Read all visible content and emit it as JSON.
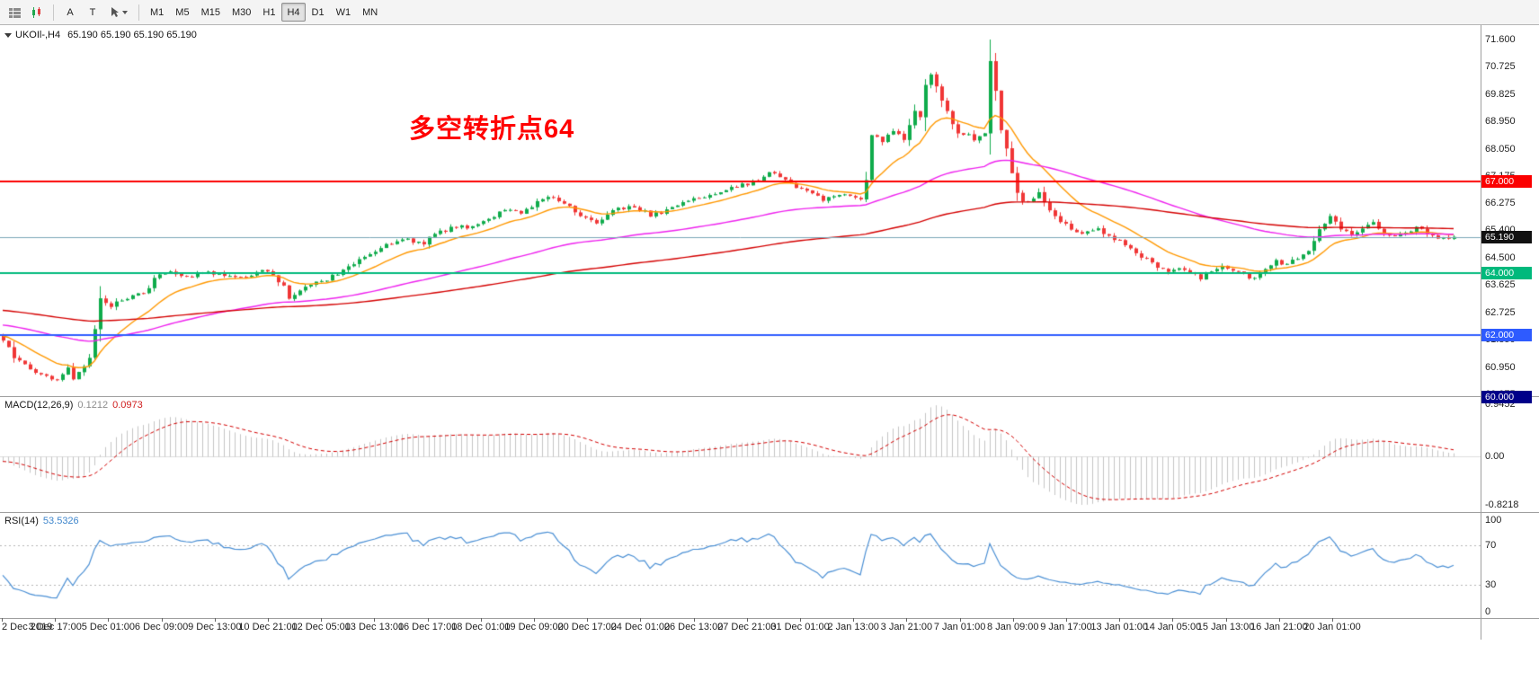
{
  "toolbar": {
    "buttons": [
      {
        "id": "arrow-tool",
        "label": "A"
      },
      {
        "id": "text-tool",
        "label": "T"
      }
    ],
    "timeframes": [
      "M1",
      "M5",
      "M15",
      "M30",
      "H1",
      "H4",
      "D1",
      "W1",
      "MN"
    ],
    "active_timeframe": "H4"
  },
  "main_chart": {
    "symbol": "UKOIl-,H4",
    "ohlc_text": "65.190 65.190 65.190 65.190",
    "annotation": {
      "text": "多空转折点64",
      "color": "#ff0000"
    },
    "current_price": {
      "value": "65.190"
    },
    "price_axis": [
      "71.600",
      "70.725",
      "69.825",
      "68.950",
      "68.050",
      "67.175",
      "66.275",
      "65.400",
      "64.500",
      "63.625",
      "62.725",
      "61.850",
      "60.950",
      "60.075"
    ],
    "horizontal_lines": [
      {
        "price": 67.0,
        "label": "67.000",
        "color": "#fb0000",
        "width": 2
      },
      {
        "price": 64.0,
        "label": "64.000",
        "color": "#00b97c",
        "width": 2
      },
      {
        "price": 62.0,
        "label": "62.000",
        "color": "#2e5bff",
        "width": 2
      },
      {
        "price": 60.0,
        "label": "60.000",
        "color": "#000089",
        "width": 3
      }
    ]
  },
  "macd_panel": {
    "title": "MACD(12,26,9)",
    "value_main": "0.1212",
    "value_signal": "0.0973",
    "axis": [
      "0.9452",
      "0.00",
      "-0.8218"
    ]
  },
  "rsi_panel": {
    "title": "RSI(14)",
    "value": "53.5326",
    "axis": [
      "100",
      "70",
      "30",
      "0"
    ]
  },
  "time_axis": [
    "2 Dec 2019",
    "3 Dec 17:00",
    "5 Dec 01:00",
    "6 Dec 09:00",
    "9 Dec 13:00",
    "10 Dec 21:00",
    "12 Dec 05:00",
    "13 Dec 13:00",
    "16 Dec 17:00",
    "18 Dec 01:00",
    "19 Dec 09:00",
    "20 Dec 17:00",
    "24 Dec 01:00",
    "26 Dec 13:00",
    "27 Dec 21:00",
    "31 Dec 01:00",
    "2 Jan 13:00",
    "3 Jan 21:00",
    "7 Jan 01:00",
    "8 Jan 09:00",
    "9 Jan 17:00",
    "13 Jan 01:00",
    "14 Jan 05:00",
    "15 Jan 13:00",
    "16 Jan 21:00",
    "20 Jan 01:00"
  ],
  "colors": {
    "bull": "#0fab4b",
    "bear": "#f03636",
    "price_line": "#7ba7b8",
    "current_badge": "#111111"
  },
  "chart_data": {
    "type": "candlestick",
    "symbol": "UKOIl-",
    "timeframe": "H4",
    "ohlc_display": {
      "open": "65.190",
      "high": "65.190",
      "low": "65.190",
      "close": "65.190"
    },
    "price_range_view": [
      59.95,
      72.07
    ],
    "n_candles": 270,
    "close_anchors": [
      [
        0,
        61.85
      ],
      [
        2,
        61.3
      ],
      [
        4,
        61.05
      ],
      [
        6,
        60.8
      ],
      [
        8,
        60.65
      ],
      [
        10,
        60.55
      ],
      [
        12,
        60.9
      ],
      [
        13,
        60.6
      ],
      [
        15,
        61.05
      ],
      [
        16,
        61.3
      ],
      [
        17,
        62.2
      ],
      [
        18,
        63.25
      ],
      [
        20,
        62.95
      ],
      [
        22,
        63.15
      ],
      [
        24,
        63.3
      ],
      [
        26,
        63.35
      ],
      [
        28,
        63.8
      ],
      [
        30,
        64.1
      ],
      [
        32,
        63.95
      ],
      [
        34,
        63.85
      ],
      [
        36,
        63.95
      ],
      [
        38,
        64.05
      ],
      [
        40,
        64.0
      ],
      [
        42,
        63.9
      ],
      [
        44,
        63.85
      ],
      [
        46,
        63.95
      ],
      [
        48,
        64.05
      ],
      [
        50,
        63.95
      ],
      [
        52,
        63.6
      ],
      [
        53,
        63.25
      ],
      [
        55,
        63.45
      ],
      [
        57,
        63.6
      ],
      [
        60,
        63.8
      ],
      [
        62,
        64.0
      ],
      [
        64,
        64.2
      ],
      [
        66,
        64.45
      ],
      [
        68,
        64.6
      ],
      [
        70,
        64.8
      ],
      [
        72,
        65.0
      ],
      [
        74,
        65.15
      ],
      [
        76,
        65.05
      ],
      [
        78,
        65.0
      ],
      [
        80,
        65.25
      ],
      [
        82,
        65.4
      ],
      [
        84,
        65.55
      ],
      [
        86,
        65.45
      ],
      [
        88,
        65.55
      ],
      [
        90,
        65.8
      ],
      [
        92,
        65.95
      ],
      [
        94,
        66.1
      ],
      [
        96,
        66.0
      ],
      [
        98,
        66.2
      ],
      [
        100,
        66.45
      ],
      [
        102,
        66.5
      ],
      [
        104,
        66.3
      ],
      [
        106,
        66.0
      ],
      [
        108,
        65.75
      ],
      [
        110,
        65.6
      ],
      [
        112,
        65.9
      ],
      [
        114,
        66.1
      ],
      [
        116,
        66.2
      ],
      [
        118,
        66.1
      ],
      [
        120,
        65.9
      ],
      [
        122,
        66.0
      ],
      [
        124,
        66.15
      ],
      [
        126,
        66.3
      ],
      [
        128,
        66.4
      ],
      [
        130,
        66.5
      ],
      [
        132,
        66.6
      ],
      [
        134,
        66.7
      ],
      [
        136,
        66.85
      ],
      [
        138,
        66.9
      ],
      [
        140,
        67.05
      ],
      [
        142,
        67.35
      ],
      [
        144,
        67.1
      ],
      [
        146,
        66.9
      ],
      [
        148,
        66.75
      ],
      [
        150,
        66.6
      ],
      [
        152,
        66.4
      ],
      [
        154,
        66.45
      ],
      [
        156,
        66.6
      ],
      [
        158,
        66.5
      ],
      [
        159,
        66.4
      ],
      [
        160,
        67.1
      ],
      [
        161,
        68.55
      ],
      [
        163,
        68.3
      ],
      [
        165,
        68.65
      ],
      [
        167,
        68.3
      ],
      [
        169,
        69.25
      ],
      [
        170,
        69.05
      ],
      [
        171,
        70.15
      ],
      [
        172,
        70.5
      ],
      [
        173,
        70.05
      ],
      [
        174,
        69.6
      ],
      [
        175,
        69.3
      ],
      [
        176,
        68.9
      ],
      [
        177,
        68.6
      ],
      [
        178,
        68.45
      ],
      [
        179,
        68.55
      ],
      [
        180,
        68.35
      ],
      [
        181,
        68.5
      ],
      [
        182,
        68.6
      ],
      [
        183,
        70.85
      ],
      [
        184,
        69.9
      ],
      [
        185,
        68.7
      ],
      [
        186,
        68.0
      ],
      [
        187,
        67.3
      ],
      [
        188,
        66.6
      ],
      [
        189,
        66.4
      ],
      [
        190,
        66.35
      ],
      [
        191,
        66.5
      ],
      [
        192,
        66.6
      ],
      [
        193,
        66.3
      ],
      [
        194,
        66.0
      ],
      [
        195,
        65.85
      ],
      [
        196,
        65.7
      ],
      [
        197,
        65.55
      ],
      [
        198,
        65.45
      ],
      [
        200,
        65.3
      ],
      [
        202,
        65.45
      ],
      [
        204,
        65.35
      ],
      [
        206,
        65.15
      ],
      [
        208,
        64.9
      ],
      [
        210,
        64.7
      ],
      [
        212,
        64.45
      ],
      [
        214,
        64.2
      ],
      [
        216,
        64.0
      ],
      [
        218,
        64.2
      ],
      [
        220,
        64.0
      ],
      [
        222,
        63.85
      ],
      [
        224,
        64.1
      ],
      [
        226,
        64.3
      ],
      [
        228,
        64.1
      ],
      [
        230,
        63.95
      ],
      [
        232,
        63.8
      ],
      [
        234,
        64.15
      ],
      [
        236,
        64.4
      ],
      [
        238,
        64.3
      ],
      [
        240,
        64.5
      ],
      [
        242,
        64.8
      ],
      [
        244,
        65.45
      ],
      [
        246,
        65.9
      ],
      [
        248,
        65.5
      ],
      [
        250,
        65.3
      ],
      [
        252,
        65.45
      ],
      [
        254,
        65.6
      ],
      [
        256,
        65.3
      ],
      [
        258,
        65.15
      ],
      [
        260,
        65.35
      ],
      [
        262,
        65.5
      ],
      [
        264,
        65.3
      ],
      [
        266,
        65.2
      ],
      [
        269,
        65.19
      ]
    ],
    "spike_high": {
      "index": 183,
      "price": 71.6
    },
    "moving_averages": [
      {
        "name": "fast",
        "period": 14,
        "color": "#ff9800"
      },
      {
        "name": "mid",
        "period": 70,
        "color": "#ee22ee"
      },
      {
        "name": "slow",
        "period": 160,
        "color": "#d40000"
      }
    ],
    "indicators": {
      "macd": {
        "fast": 12,
        "slow": 26,
        "signal": 9,
        "histogram_color": "#c4c4c4",
        "signal_color": "#d20000"
      },
      "rsi": {
        "period": 14,
        "color": "#4a8fd4",
        "levels": [
          70,
          30
        ]
      }
    }
  }
}
